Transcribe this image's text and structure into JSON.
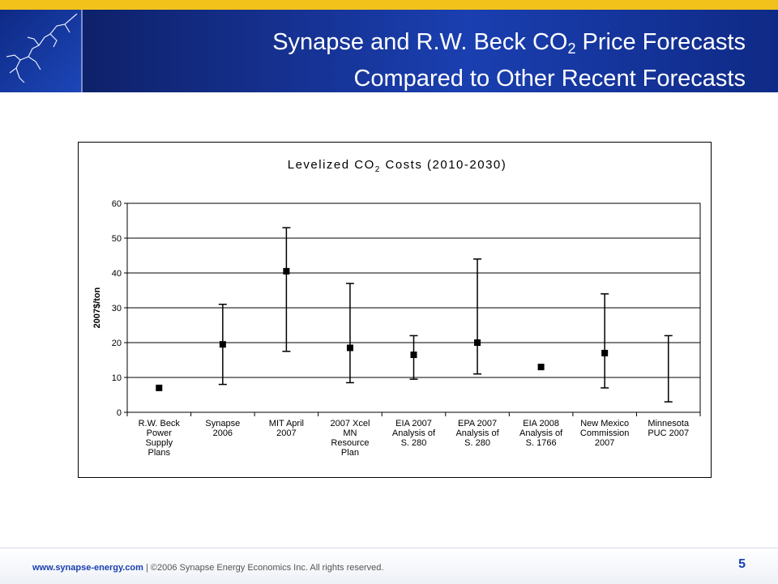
{
  "header": {
    "title_line1_pre": "Synapse and R.W. Beck CO",
    "title_line1_sub": "2",
    "title_line1_post": " Price Forecasts",
    "title_line2": "Compared to Other Recent Forecasts"
  },
  "footer": {
    "url": "www.synapse-energy.com",
    "separator": "|",
    "copyright": "©2006 Synapse Energy Economics Inc. All rights reserved.",
    "page_number": "5"
  },
  "chart_data": {
    "type": "scatter",
    "title_pre": "Levelized CO",
    "title_sub": "2",
    "title_post": " Costs (2010-2030)",
    "ylabel": "2007$/ton",
    "ylim": [
      0,
      60
    ],
    "yticks": [
      0,
      10,
      20,
      30,
      40,
      50,
      60
    ],
    "grid": true,
    "categories": [
      [
        "R.W. Beck",
        "Power",
        "Supply",
        "Plans"
      ],
      [
        "Synapse",
        "2006"
      ],
      [
        "MIT April",
        "2007"
      ],
      [
        "2007 Xcel",
        "MN",
        "Resource",
        "Plan"
      ],
      [
        "EIA 2007",
        "Analysis of",
        "S. 280"
      ],
      [
        "EPA 2007",
        "Analysis of",
        "S. 280"
      ],
      [
        "EIA 2008",
        "Analysis of",
        "S. 1766"
      ],
      [
        "New Mexico",
        "Commission",
        "2007"
      ],
      [
        "Minnesota",
        "PUC 2007"
      ]
    ],
    "points": [
      {
        "mid": 7,
        "low": null,
        "high": null
      },
      {
        "mid": 19.5,
        "low": 8,
        "high": 31
      },
      {
        "mid": 40.5,
        "low": 17.5,
        "high": 53
      },
      {
        "mid": 18.5,
        "low": 8.5,
        "high": 37
      },
      {
        "mid": 16.5,
        "low": 9.5,
        "high": 22
      },
      {
        "mid": 20,
        "low": 11,
        "high": 44
      },
      {
        "mid": 13,
        "low": null,
        "high": null
      },
      {
        "mid": 17,
        "low": 7,
        "high": 34
      },
      {
        "mid": null,
        "low": 3,
        "high": 22
      }
    ],
    "marker_color": "#000000"
  }
}
